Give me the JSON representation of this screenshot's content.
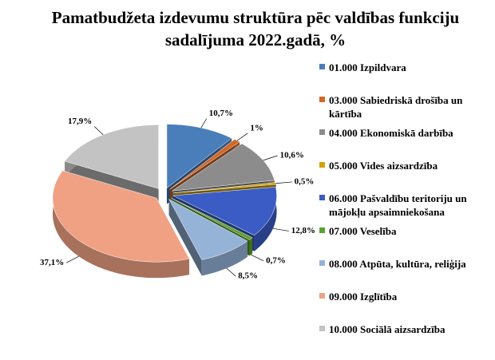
{
  "chart_data": {
    "type": "pie",
    "title": "Pamatbudžeta izdevumu struktūra pēc valdības funkciju sadalījuma 2022.gadā, %",
    "categories": [
      "01.000 Izpildvara",
      "03.000 Sabiedriskā drošība un kārtība",
      "04.000 Ekonomiskā darbība",
      "05.000 Vides aizsardzība",
      "06.000 Pašvaldību teritoriju un mājokļu apsaimniekošana",
      "07.000 Veselība",
      "08.000 Atpūta, kultūra, reliģija",
      "09.000 Izglītība",
      "10.000 Sociālā aizsardzība"
    ],
    "values": [
      10.7,
      1,
      10.6,
      0.5,
      12.8,
      0.7,
      8.5,
      37.1,
      17.9
    ],
    "value_labels": [
      "10,7%",
      "1%",
      "10,6%",
      "0,5%",
      "12,8%",
      "0,7%",
      "8,5%",
      "37,1%",
      "17,9%"
    ],
    "colors": [
      "#4a7ebb",
      "#d0692a",
      "#8c8c8c",
      "#d4a20a",
      "#3a5cc4",
      "#5aa02c",
      "#95b3d7",
      "#f0a183",
      "#c3c3c3"
    ],
    "legend": "right"
  }
}
